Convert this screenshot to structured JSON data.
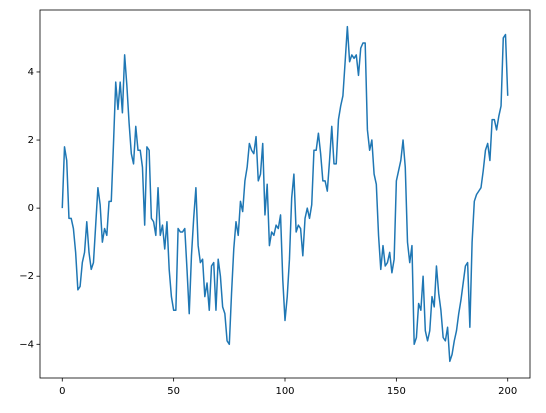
{
  "chart_data": {
    "type": "line",
    "x": [
      0,
      1,
      2,
      3,
      4,
      5,
      6,
      7,
      8,
      9,
      10,
      11,
      12,
      13,
      14,
      15,
      16,
      17,
      18,
      19,
      20,
      21,
      22,
      23,
      24,
      25,
      26,
      27,
      28,
      29,
      30,
      31,
      32,
      33,
      34,
      35,
      36,
      37,
      38,
      39,
      40,
      41,
      42,
      43,
      44,
      45,
      46,
      47,
      48,
      49,
      50,
      51,
      52,
      53,
      54,
      55,
      56,
      57,
      58,
      59,
      60,
      61,
      62,
      63,
      64,
      65,
      66,
      67,
      68,
      69,
      70,
      71,
      72,
      73,
      74,
      75,
      76,
      77,
      78,
      79,
      80,
      81,
      82,
      83,
      84,
      85,
      86,
      87,
      88,
      89,
      90,
      91,
      92,
      93,
      94,
      95,
      96,
      97,
      98,
      99,
      100,
      101,
      102,
      103,
      104,
      105,
      106,
      107,
      108,
      109,
      110,
      111,
      112,
      113,
      114,
      115,
      116,
      117,
      118,
      119,
      120,
      121,
      122,
      123,
      124,
      125,
      126,
      127,
      128,
      129,
      130,
      131,
      132,
      133,
      134,
      135,
      136,
      137,
      138,
      139,
      140,
      141,
      142,
      143,
      144,
      145,
      146,
      147,
      148,
      149,
      150,
      151,
      152,
      153,
      154,
      155,
      156,
      157,
      158,
      159,
      160,
      161,
      162,
      163,
      164,
      165,
      166,
      167,
      168,
      169,
      170,
      171,
      172,
      173,
      174,
      175,
      176,
      177,
      178,
      179,
      180,
      181,
      182,
      183,
      184,
      185,
      186,
      187,
      188,
      189,
      190,
      191,
      192,
      193,
      194,
      195,
      196,
      197,
      198,
      199,
      200
    ],
    "series": [
      {
        "color": "#1f77b4",
        "values": [
          0,
          1.8,
          1.4,
          -0.3,
          -0.3,
          -0.6,
          -1.3,
          -2.4,
          -2.3,
          -1.6,
          -1.3,
          -0.4,
          -1.3,
          -1.8,
          -1.6,
          -0.5,
          0.6,
          0.1,
          -1.0,
          -0.6,
          -0.8,
          0.2,
          0.2,
          1.9,
          3.7,
          2.9,
          3.7,
          2.8,
          4.5,
          3.6,
          2.5,
          1.6,
          1.3,
          2.4,
          1.7,
          1.7,
          1.2,
          -0.5,
          1.8,
          1.7,
          -0.3,
          -0.4,
          -0.8,
          0.6,
          -0.8,
          -0.5,
          -1.2,
          -0.4,
          -1.8,
          -2.6,
          -3.0,
          -3.0,
          -0.6,
          -0.7,
          -0.7,
          -0.6,
          -1.8,
          -3.1,
          -1.4,
          -0.3,
          0.6,
          -1.1,
          -1.6,
          -1.5,
          -2.6,
          -2.2,
          -3.0,
          -1.7,
          -1.6,
          -3.0,
          -1.5,
          -2.0,
          -2.9,
          -3.1,
          -3.9,
          -4.0,
          -2.5,
          -1.2,
          -0.4,
          -0.8,
          0.2,
          -0.1,
          0.8,
          1.2,
          1.9,
          1.7,
          1.6,
          2.1,
          0.8,
          1.0,
          1.9,
          -0.2,
          0.7,
          -1.1,
          -0.7,
          -0.8,
          -0.5,
          -0.6,
          -0.2,
          -2.1,
          -3.3,
          -2.6,
          -1.5,
          0.3,
          1.0,
          -0.7,
          -0.5,
          -0.6,
          -1.4,
          -0.3,
          0.0,
          -0.3,
          0.1,
          1.7,
          1.7,
          2.2,
          1.6,
          0.8,
          0.8,
          0.5,
          1.4,
          2.4,
          1.3,
          1.3,
          2.6,
          3.0,
          3.3,
          4.3,
          5.33,
          4.3,
          4.5,
          4.4,
          4.5,
          3.9,
          4.7,
          4.85,
          4.85,
          2.3,
          1.7,
          2.0,
          1.0,
          0.7,
          -0.8,
          -1.8,
          -1.1,
          -1.7,
          -1.6,
          -1.3,
          -1.9,
          -1.5,
          0.8,
          1.1,
          1.4,
          2.0,
          1.2,
          -1.0,
          -1.6,
          -1.1,
          -4.0,
          -3.8,
          -2.8,
          -3.0,
          -2.0,
          -3.6,
          -3.9,
          -3.6,
          -2.6,
          -2.9,
          -1.7,
          -2.5,
          -3.0,
          -3.8,
          -3.9,
          -3.5,
          -4.5,
          -4.3,
          -3.9,
          -3.6,
          -3.1,
          -2.7,
          -2.2,
          -1.7,
          -1.6,
          -3.5,
          -1.0,
          0.2,
          0.4,
          0.5,
          0.6,
          1.1,
          1.7,
          1.9,
          1.4,
          2.6,
          2.6,
          2.3,
          2.7,
          3.0,
          5.0,
          5.1,
          3.3
        ]
      }
    ],
    "xlim": [
      -10,
      210
    ],
    "ylim": [
      -4.99,
      5.82
    ],
    "xticks": [
      0,
      50,
      100,
      150,
      200
    ],
    "yticks": [
      {
        "value": -4,
        "label": "−4"
      },
      {
        "value": -2,
        "label": "−2"
      },
      0,
      2,
      4
    ]
  }
}
